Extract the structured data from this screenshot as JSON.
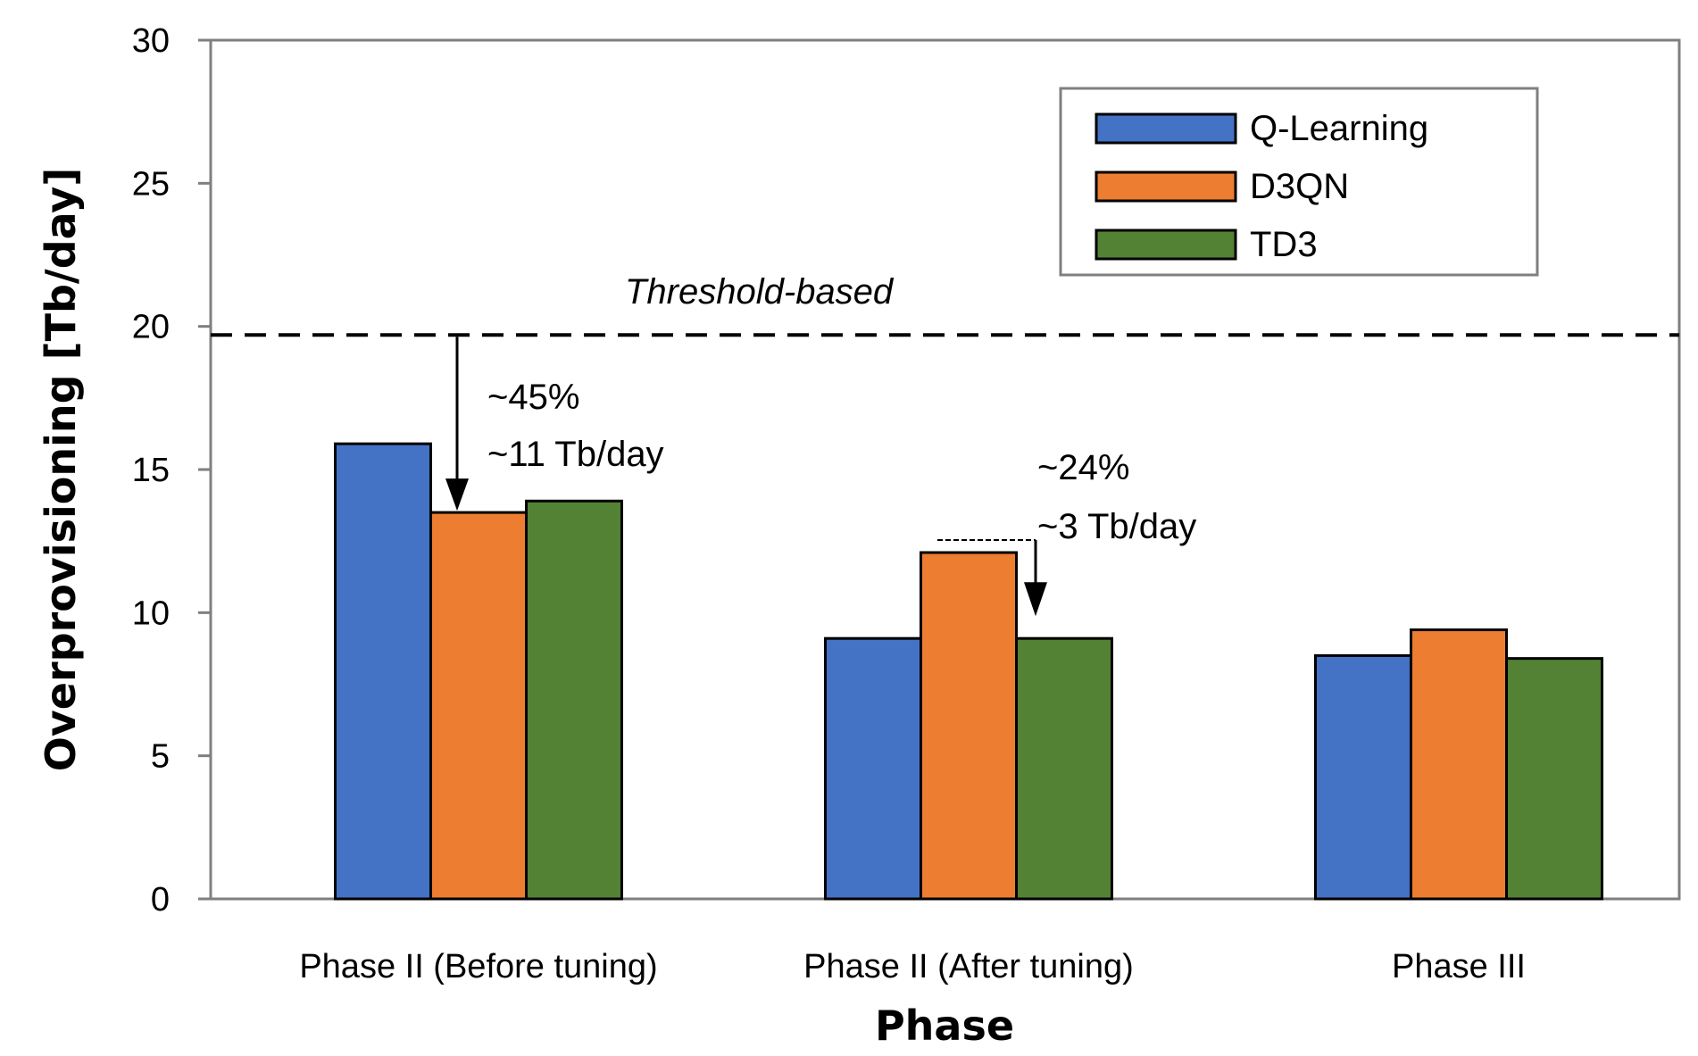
{
  "chart_data": {
    "type": "bar",
    "title": "",
    "xlabel": "Phase",
    "ylabel": "Overprovisioning [Tb/day]",
    "ylim": [
      0,
      30
    ],
    "yticks": [
      "0",
      "5",
      "10",
      "15",
      "20",
      "25",
      "30"
    ],
    "categories": [
      "Phase II (Before tuning)",
      "Phase II (After tuning)",
      "Phase III"
    ],
    "series": [
      {
        "name": "Q-Learning",
        "color": "#4472C4",
        "values": [
          15.9,
          9.1,
          8.5
        ]
      },
      {
        "name": "D3QN",
        "color": "#ED7D31",
        "values": [
          13.5,
          12.1,
          9.4
        ]
      },
      {
        "name": "TD3",
        "color": "#548235",
        "values": [
          13.9,
          9.1,
          8.4
        ]
      }
    ],
    "threshold": {
      "label": "Threshold-based",
      "value": 19.7
    },
    "annotations": [
      {
        "line1": "~45%",
        "line2": "~11 Tb/day"
      },
      {
        "line1": "~24%",
        "line2": "~3 Tb/day"
      }
    ],
    "legend_position": "top-right",
    "grid": false
  }
}
